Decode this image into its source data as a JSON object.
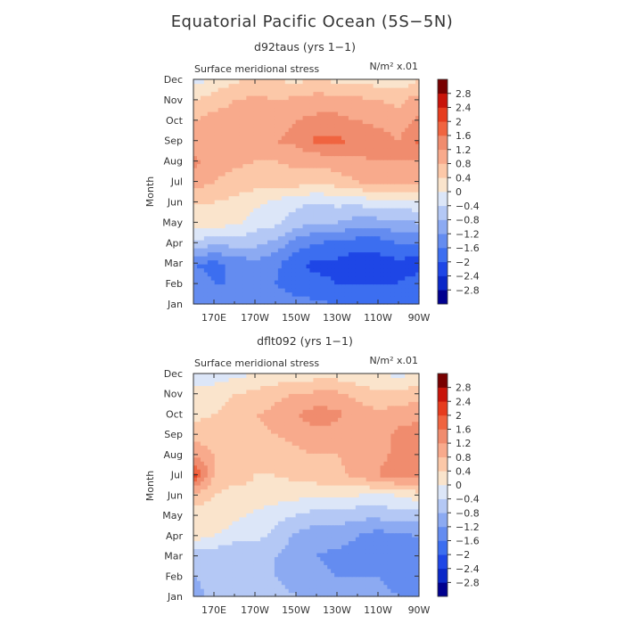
{
  "figure": {
    "title": "Equatorial Pacific Ocean (5S−5N)"
  },
  "chart_data": [
    {
      "type": "heatmap",
      "panel_title": "d92taus (yrs 1−1)",
      "variable": "Surface meridional stress",
      "units": "N/m² x.01",
      "ylabel": "Month",
      "xlabel": "",
      "x_ticks": [
        "170E",
        "170W",
        "150W",
        "130W",
        "110W",
        "90W"
      ],
      "y_ticks": [
        "Jan",
        "Feb",
        "Mar",
        "Apr",
        "May",
        "Jun",
        "Jul",
        "Aug",
        "Sep",
        "Oct",
        "Nov",
        "Dec"
      ],
      "x_lon": [
        160,
        170,
        180,
        190,
        200,
        210,
        220,
        230,
        240,
        250,
        260,
        270
      ],
      "months": [
        "Jan",
        "Feb",
        "Mar",
        "Apr",
        "May",
        "Jun",
        "Jul",
        "Aug",
        "Sep",
        "Oct",
        "Nov",
        "Dec"
      ],
      "values": [
        [
          -1.2,
          -1.4,
          -1.3,
          -1.2,
          -1.3,
          -1.4,
          -1.5,
          -1.6,
          -1.8,
          -1.6,
          -1.8,
          -1.8
        ],
        [
          -1.4,
          -1.6,
          -1.6,
          -1.4,
          -1.6,
          -1.9,
          -1.9,
          -2.0,
          -2.0,
          -2.0,
          -2.0,
          -1.8
        ],
        [
          -1.6,
          -1.7,
          -1.5,
          -1.3,
          -1.5,
          -1.9,
          -2.1,
          -2.1,
          -2.3,
          -2.2,
          -2.1,
          -2.2
        ],
        [
          -0.4,
          -0.8,
          -0.6,
          -0.7,
          -0.9,
          -1.4,
          -1.6,
          -1.7,
          -1.8,
          -1.8,
          -1.6,
          -1.6
        ],
        [
          0.1,
          0.2,
          0.1,
          -0.2,
          -0.3,
          -0.6,
          -0.8,
          -0.8,
          -1.0,
          -1.0,
          -0.9,
          -0.8
        ],
        [
          0.4,
          0.4,
          0.3,
          0.1,
          -0.1,
          -0.3,
          -0.4,
          -0.3,
          -0.3,
          -0.1,
          -0.2,
          -0.1
        ],
        [
          1.0,
          0.8,
          0.6,
          0.6,
          0.6,
          0.6,
          0.5,
          0.6,
          0.8,
          0.9,
          0.9,
          0.9
        ],
        [
          1.3,
          1.0,
          0.9,
          0.8,
          0.8,
          0.9,
          0.9,
          1.0,
          1.1,
          1.2,
          1.2,
          1.2
        ],
        [
          1.0,
          1.0,
          1.2,
          1.1,
          1.2,
          1.3,
          1.7,
          1.7,
          1.5,
          1.4,
          1.2,
          1.7
        ],
        [
          0.8,
          1.0,
          0.9,
          0.9,
          1.0,
          1.2,
          1.3,
          1.3,
          1.2,
          1.1,
          1.0,
          1.3
        ],
        [
          0.4,
          0.6,
          0.8,
          0.9,
          0.8,
          0.9,
          1.0,
          1.0,
          0.9,
          0.8,
          0.7,
          1.0
        ],
        [
          -0.2,
          0.1,
          0.3,
          0.5,
          0.4,
          0.3,
          0.4,
          0.3,
          0.3,
          0.2,
          0.1,
          0.4
        ]
      ]
    },
    {
      "type": "heatmap",
      "panel_title": "dflt092 (yrs 1−1)",
      "variable": "Surface meridional stress",
      "units": "N/m² x.01",
      "ylabel": "Month",
      "xlabel": "",
      "x_ticks": [
        "170E",
        "170W",
        "150W",
        "130W",
        "110W",
        "90W"
      ],
      "y_ticks": [
        "Jan",
        "Feb",
        "Mar",
        "Apr",
        "May",
        "Jun",
        "Jul",
        "Aug",
        "Sep",
        "Oct",
        "Nov",
        "Dec"
      ],
      "x_lon": [
        160,
        170,
        180,
        190,
        200,
        210,
        220,
        230,
        240,
        250,
        260,
        270
      ],
      "months": [
        "Jan",
        "Feb",
        "Mar",
        "Apr",
        "May",
        "Jun",
        "Jul",
        "Aug",
        "Sep",
        "Oct",
        "Nov",
        "Dec"
      ],
      "values": [
        [
          -1.0,
          -0.6,
          -0.6,
          -0.5,
          -0.6,
          -0.8,
          -0.8,
          -0.9,
          -0.9,
          -1.0,
          -1.2,
          -1.4
        ],
        [
          -0.8,
          -0.7,
          -0.7,
          -0.7,
          -0.8,
          -1.0,
          -1.1,
          -1.2,
          -1.2,
          -1.2,
          -1.4,
          -1.6
        ],
        [
          -0.6,
          -0.7,
          -0.8,
          -0.7,
          -0.8,
          -1.0,
          -1.2,
          -1.3,
          -1.4,
          -1.6,
          -1.6,
          -1.6
        ],
        [
          0.2,
          0.0,
          -0.2,
          -0.3,
          -0.5,
          -0.9,
          -1.1,
          -1.0,
          -1.2,
          -1.4,
          -1.3,
          -1.2
        ],
        [
          0.2,
          0.3,
          0.1,
          -0.1,
          -0.3,
          -0.4,
          -0.6,
          -0.6,
          -0.7,
          -0.7,
          -0.6,
          -0.6
        ],
        [
          0.6,
          0.4,
          0.2,
          0.3,
          0.2,
          0.1,
          0.1,
          0.0,
          0.0,
          -0.1,
          0.0,
          0.2
        ],
        [
          2.2,
          0.8,
          0.6,
          0.4,
          0.4,
          0.5,
          0.6,
          0.7,
          0.9,
          1.2,
          1.4,
          1.3
        ],
        [
          1.2,
          0.8,
          0.6,
          0.5,
          0.6,
          0.7,
          0.8,
          0.8,
          0.9,
          1.1,
          1.3,
          1.3
        ],
        [
          0.6,
          0.6,
          0.6,
          0.7,
          0.8,
          0.9,
          1.1,
          1.0,
          0.9,
          1.0,
          1.3,
          1.4
        ],
        [
          0.3,
          0.4,
          0.6,
          0.8,
          0.9,
          1.2,
          1.4,
          1.3,
          1.0,
          0.9,
          1.0,
          1.1
        ],
        [
          0.1,
          0.2,
          0.4,
          0.5,
          0.7,
          0.8,
          0.9,
          0.9,
          0.7,
          0.5,
          0.5,
          0.7
        ],
        [
          -0.2,
          -0.2,
          -0.1,
          0.0,
          0.1,
          0.2,
          0.2,
          0.2,
          0.1,
          0.0,
          -0.1,
          0.0
        ]
      ]
    }
  ],
  "colorbar": {
    "labels": [
      "2.8",
      "2.4",
      "2",
      "1.6",
      "1.2",
      "0.8",
      "0.4",
      "0",
      "−0.4",
      "−0.8",
      "−1.2",
      "−1.6",
      "−2",
      "−2.4",
      "−2.8"
    ],
    "levels": [
      -2.8,
      -2.4,
      -2.0,
      -1.6,
      -1.2,
      -0.8,
      -0.4,
      0,
      0.4,
      0.8,
      1.2,
      1.6,
      2.0,
      2.4,
      2.8
    ],
    "colors": [
      "#00008f",
      "#0a28c8",
      "#1e46e6",
      "#3c6ef0",
      "#648cf0",
      "#8caaf2",
      "#b4c8f5",
      "#dce6f8",
      "#fae4cc",
      "#fcc8a8",
      "#f8aa8c",
      "#f08c6e",
      "#f06440",
      "#e63c1e",
      "#c8140a",
      "#780000"
    ]
  }
}
